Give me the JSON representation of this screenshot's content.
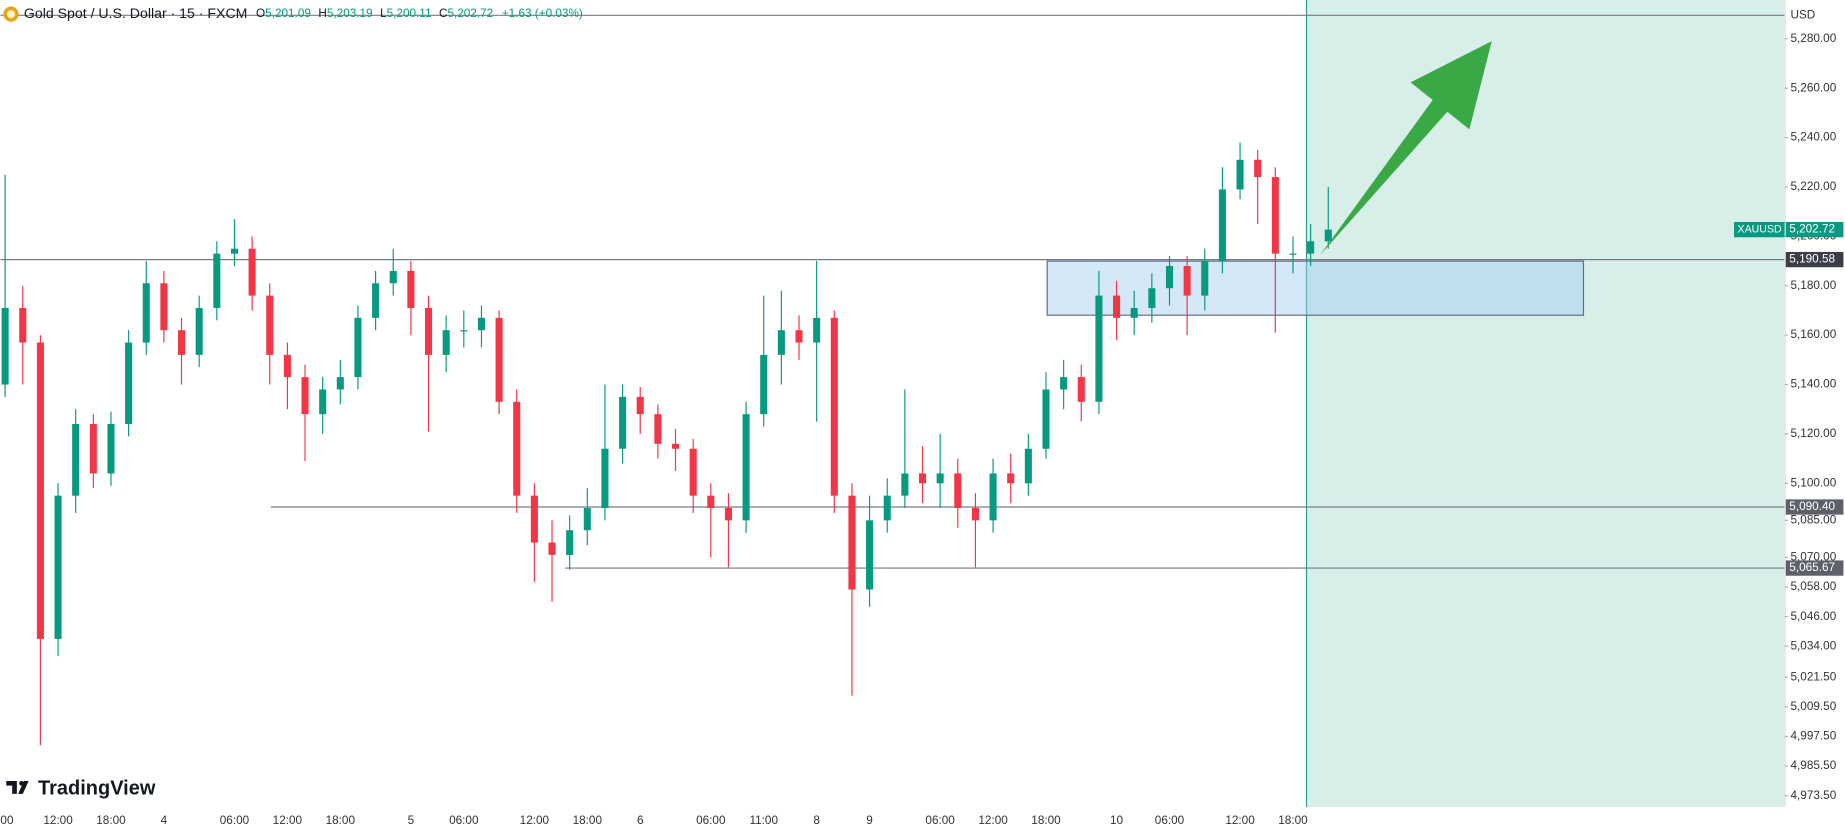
{
  "header": {
    "title": "Gold Spot / U.S. Dollar · 15 · FXCM",
    "ohlc": [
      {
        "key": "O",
        "value": "5,201.09"
      },
      {
        "key": "H",
        "value": "5,203.19"
      },
      {
        "key": "L",
        "value": "5,200.11"
      },
      {
        "key": "C",
        "value": "5,202.72"
      }
    ],
    "change": "+1.63 (+0.03%)"
  },
  "logo": "TradingView",
  "chart_data": {
    "type": "candlestick",
    "categories": [
      "00",
      null,
      null,
      "12:00",
      null,
      null,
      "18:00",
      null,
      null,
      "4",
      null,
      null,
      null,
      "06:00",
      null,
      null,
      "12:00",
      null,
      null,
      "18:00",
      null,
      null,
      null,
      "5",
      null,
      null,
      "06:00",
      null,
      null,
      null,
      "12:00",
      null,
      null,
      "18:00",
      null,
      null,
      "6",
      null,
      null,
      null,
      "06:00",
      null,
      null,
      "11:00",
      null,
      null,
      "8",
      null,
      null,
      "9",
      null,
      null,
      null,
      "06:00",
      null,
      null,
      "12:00",
      null,
      null,
      "18:00",
      null,
      null,
      null,
      "10",
      null,
      null,
      "06:00",
      null,
      null,
      null,
      "12:00",
      null,
      null,
      "18:00",
      null,
      null
    ],
    "open": [
      5140,
      5171,
      5157,
      5037,
      5095,
      5124,
      5104,
      5124,
      5157,
      5181,
      5162,
      5152,
      5171,
      5193,
      5195,
      5176,
      5152,
      5143,
      5128,
      5138,
      5143,
      5167,
      5181,
      5186,
      5171,
      5152,
      5162,
      5162,
      5167,
      5133,
      5095,
      5076,
      5071,
      5081,
      5090,
      5114,
      5135,
      5128,
      5116,
      5114,
      5095,
      5090,
      5085,
      5128,
      5152,
      5162,
      5157,
      5167,
      5095,
      5057,
      5085,
      5095,
      5104,
      5100,
      5104,
      5090,
      5085,
      5104,
      5100,
      5114,
      5138,
      5143,
      5133,
      5176,
      5167,
      5171,
      5179,
      5188,
      5176,
      5190,
      5219,
      5231,
      5224,
      5193,
      5193,
      5198
    ],
    "high": [
      5225,
      5180,
      5160,
      5100,
      5130,
      5128,
      5129,
      5162,
      5190,
      5186,
      5167,
      5176,
      5198,
      5207,
      5200,
      5181,
      5157,
      5148,
      5143,
      5150,
      5172,
      5186,
      5195,
      5190,
      5176,
      5168,
      5170,
      5172,
      5170,
      5138,
      5100,
      5085,
      5087,
      5098,
      5140,
      5140,
      5139,
      5132,
      5122,
      5118,
      5100,
      5096,
      5133,
      5176,
      5178,
      5168,
      5190,
      5170,
      5100,
      5095,
      5102,
      5138,
      5115,
      5120,
      5110,
      5096,
      5110,
      5112,
      5120,
      5145,
      5150,
      5148,
      5186,
      5182,
      5178,
      5185,
      5192,
      5192,
      5195,
      5228,
      5238,
      5235,
      5228,
      5200,
      5205,
      5220
    ],
    "low": [
      5135,
      5140,
      4994,
      5030,
      5088,
      5098,
      5099,
      5119,
      5152,
      5157,
      5140,
      5147,
      5166,
      5188,
      5170,
      5140,
      5130,
      5109,
      5120,
      5132,
      5138,
      5162,
      5176,
      5160,
      5121,
      5145,
      5155,
      5155,
      5128,
      5088,
      5060,
      5052,
      5065,
      5075,
      5085,
      5108,
      5120,
      5110,
      5105,
      5088,
      5070,
      5066,
      5080,
      5123,
      5140,
      5150,
      5125,
      5088,
      5014,
      5050,
      5080,
      5090,
      5092,
      5090,
      5082,
      5066,
      5080,
      5092,
      5095,
      5110,
      5130,
      5125,
      5128,
      5158,
      5160,
      5165,
      5172,
      5160,
      5170,
      5185,
      5215,
      5205,
      5161,
      5185,
      5188,
      5195
    ],
    "close": [
      5171,
      5157,
      5037,
      5095,
      5124,
      5104,
      5124,
      5157,
      5181,
      5162,
      5152,
      5171,
      5193,
      5195,
      5176,
      5152,
      5143,
      5128,
      5138,
      5143,
      5167,
      5181,
      5186,
      5171,
      5152,
      5162,
      5162,
      5167,
      5133,
      5095,
      5076,
      5071,
      5081,
      5090,
      5114,
      5135,
      5128,
      5116,
      5114,
      5095,
      5090,
      5085,
      5128,
      5152,
      5162,
      5157,
      5167,
      5095,
      5057,
      5085,
      5095,
      5104,
      5100,
      5104,
      5090,
      5085,
      5104,
      5100,
      5114,
      5138,
      5143,
      5133,
      5176,
      5167,
      5171,
      5179,
      5188,
      5176,
      5190,
      5219,
      5231,
      5224,
      5193,
      5193,
      5198,
      5202.72
    ],
    "up_color": "#089981",
    "down_color": "#f23645",
    "ylim": [
      4969.0,
      5295.7
    ],
    "yticks": [
      {
        "value": 5280,
        "label": "5,280.00"
      },
      {
        "value": 5260,
        "label": "5,260.00"
      },
      {
        "value": 5240,
        "label": "5,240.00"
      },
      {
        "value": 5220,
        "label": "5,220.00"
      },
      {
        "value": 5200,
        "label": "5,200.00"
      },
      {
        "value": 5180,
        "label": "5,180.00"
      },
      {
        "value": 5160,
        "label": "5,160.00"
      },
      {
        "value": 5140,
        "label": "5,140.00"
      },
      {
        "value": 5120,
        "label": "5,120.00"
      },
      {
        "value": 5100,
        "label": "5,100.00"
      },
      {
        "value": 5085,
        "label": "5,085.00"
      },
      {
        "value": 5070,
        "label": "5,070.00"
      },
      {
        "value": 5058,
        "label": "5,058.00"
      },
      {
        "value": 5046,
        "label": "5,046.00"
      },
      {
        "value": 5034,
        "label": "5,034.00"
      },
      {
        "value": 5021.5,
        "label": "5,021.50"
      },
      {
        "value": 5009.5,
        "label": "5,009.50"
      },
      {
        "value": 4997.5,
        "label": "4,997.50"
      },
      {
        "value": 4985.5,
        "label": "4,985.50"
      },
      {
        "value": 4973.5,
        "label": "4,973.50"
      }
    ],
    "axis_unit": "USD",
    "levels": [
      {
        "value": 5190.58,
        "label": "5,190.58"
      },
      {
        "value": 5090.4,
        "label": "5,090.40"
      },
      {
        "value": 5065.67,
        "label": "5,065.67"
      }
    ],
    "last_price": {
      "symbol": "XAUUSD",
      "value": 5202.72,
      "label": "5,202.72"
    }
  }
}
